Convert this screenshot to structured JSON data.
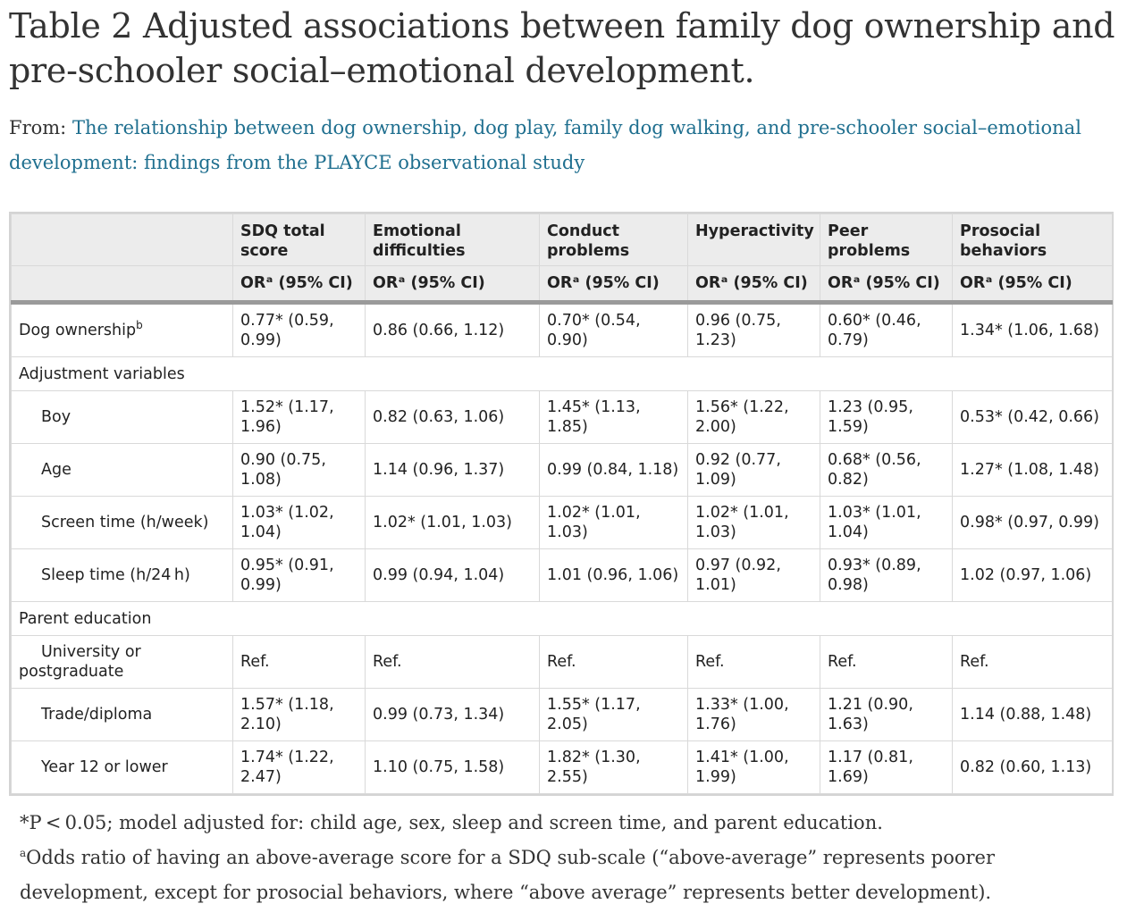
{
  "title": "Table 2 Adjusted associations between family dog ownership and pre-schooler social–emotional development.",
  "from_prefix": "From:",
  "from_link": "The relationship between dog ownership, dog play, family dog walking, and pre-schooler social–emotional development: findings from the PLAYCE observational study",
  "table": {
    "headers": [
      "",
      "SDQ total score",
      "Emotional difficulties",
      "Conduct problems",
      "Hyperactivity",
      "Peer problems",
      "Prosocial behaviors"
    ],
    "subheader": "ORᵃ (95% CI)",
    "rows": [
      {
        "type": "row",
        "label": "Dog ownership",
        "sup": "b",
        "indent": false,
        "cells": [
          "0.77* (0.59, 0.99)",
          "0.86 (0.66, 1.12)",
          "0.70* (0.54, 0.90)",
          "0.96 (0.75, 1.23)",
          "0.60* (0.46, 0.79)",
          "1.34* (1.06, 1.68)"
        ]
      },
      {
        "type": "section",
        "label": "Adjustment variables"
      },
      {
        "type": "row",
        "label": "Boy",
        "indent": true,
        "cells": [
          "1.52* (1.17, 1.96)",
          "0.82 (0.63, 1.06)",
          "1.45* (1.13, 1.85)",
          "1.56* (1.22, 2.00)",
          "1.23 (0.95, 1.59)",
          "0.53* (0.42, 0.66)"
        ]
      },
      {
        "type": "row",
        "label": "Age",
        "indent": true,
        "cells": [
          "0.90 (0.75, 1.08)",
          "1.14 (0.96, 1.37)",
          "0.99 (0.84, 1.18)",
          "0.92 (0.77, 1.09)",
          "0.68* (0.56, 0.82)",
          "1.27* (1.08, 1.48)"
        ]
      },
      {
        "type": "row",
        "label": "Screen time (h/week)",
        "indent": true,
        "cells": [
          "1.03* (1.02, 1.04)",
          "1.02* (1.01, 1.03)",
          "1.02* (1.01, 1.03)",
          "1.02* (1.01, 1.03)",
          "1.03* (1.01, 1.04)",
          "0.98* (0.97, 0.99)"
        ]
      },
      {
        "type": "row",
        "label": "Sleep time (h/24 h)",
        "indent": true,
        "cells": [
          "0.95* (0.91, 0.99)",
          "0.99 (0.94, 1.04)",
          "1.01 (0.96, 1.06)",
          "0.97 (0.92, 1.01)",
          "0.93* (0.89, 0.98)",
          "1.02 (0.97, 1.06)"
        ]
      },
      {
        "type": "section",
        "label": "Parent education"
      },
      {
        "type": "row",
        "label": "University or postgraduate",
        "indent": true,
        "wrap": true,
        "cells": [
          "Ref.",
          "Ref.",
          "Ref.",
          "Ref.",
          "Ref.",
          "Ref."
        ]
      },
      {
        "type": "row",
        "label": "Trade/diploma",
        "indent": true,
        "cells": [
          "1.57* (1.18, 2.10)",
          "0.99 (0.73, 1.34)",
          "1.55* (1.17, 2.05)",
          "1.33* (1.00, 1.76)",
          "1.21 (0.90, 1.63)",
          "1.14 (0.88, 1.48)"
        ]
      },
      {
        "type": "row",
        "label": "Year 12 or lower",
        "indent": true,
        "cells": [
          "1.74* (1.22, 2.47)",
          "1.10 (0.75, 1.58)",
          "1.82* (1.30, 2.55)",
          "1.41* (1.00, 1.99)",
          "1.17 (0.81, 1.69)",
          "0.82 (0.60, 1.13)"
        ]
      }
    ]
  },
  "notes": {
    "note1": "*P < 0.05; model adjusted for: child age, sex, sleep and screen time, and parent education.",
    "note2_sup": "a",
    "note2": "Odds ratio of having an above-average score for a SDQ sub-scale (“above-average” represents poorer development, except for prosocial behaviors, where “above average” represents better development)."
  }
}
